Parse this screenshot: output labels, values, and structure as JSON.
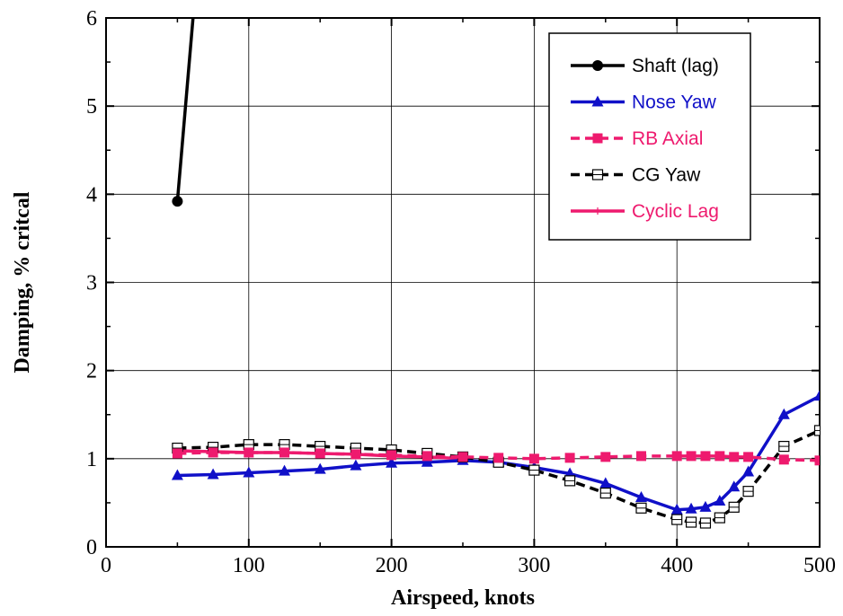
{
  "chart_data": {
    "type": "line",
    "title": "",
    "xlabel": "Airspeed, knots",
    "ylabel": "Damping, % critcal",
    "xlim": [
      0,
      500
    ],
    "ylim": [
      0,
      6
    ],
    "x_ticks": [
      0,
      100,
      200,
      300,
      400,
      500
    ],
    "y_ticks": [
      0,
      1,
      2,
      3,
      4,
      5,
      6
    ],
    "x_tick_labels": [
      "0",
      "100",
      "200",
      "300",
      "400",
      "500"
    ],
    "y_tick_labels": [
      "0",
      "1",
      "2",
      "3",
      "4",
      "5",
      "6"
    ],
    "grid": true,
    "legend_position": "top-right",
    "series": [
      {
        "name": "Shaft (lag)",
        "color": "#000000",
        "line_style": "solid",
        "marker": "filled-circle",
        "x": [
          50,
          62
        ],
        "y": [
          3.92,
          6.2
        ],
        "marker_x": [
          50
        ],
        "marker_y": [
          3.92
        ]
      },
      {
        "name": "Nose Yaw",
        "color": "#1010c8",
        "line_style": "solid",
        "marker": "filled-triangle",
        "x": [
          50,
          75,
          100,
          125,
          150,
          175,
          200,
          225,
          250,
          275,
          300,
          325,
          350,
          375,
          400,
          410,
          420,
          430,
          440,
          450,
          475,
          500
        ],
        "y": [
          0.81,
          0.82,
          0.84,
          0.86,
          0.88,
          0.92,
          0.95,
          0.96,
          0.98,
          0.96,
          0.9,
          0.83,
          0.72,
          0.56,
          0.42,
          0.43,
          0.45,
          0.52,
          0.68,
          0.85,
          1.5,
          1.71
        ]
      },
      {
        "name": "RB Axial",
        "color": "#ee1a6e",
        "line_style": "dashed",
        "marker": "filled-square",
        "x": [
          50,
          75,
          100,
          125,
          150,
          175,
          200,
          225,
          250,
          275,
          300,
          325,
          350,
          375,
          400,
          410,
          420,
          430,
          440,
          450,
          475,
          500
        ],
        "y": [
          1.06,
          1.07,
          1.07,
          1.07,
          1.06,
          1.05,
          1.04,
          1.03,
          1.02,
          1.01,
          1.0,
          1.01,
          1.02,
          1.03,
          1.03,
          1.03,
          1.03,
          1.03,
          1.02,
          1.02,
          0.99,
          0.98
        ]
      },
      {
        "name": "CG Yaw",
        "color": "#000000",
        "line_style": "dashed",
        "marker": "open-square",
        "x": [
          50,
          75,
          100,
          125,
          150,
          175,
          200,
          225,
          250,
          275,
          300,
          325,
          350,
          375,
          400,
          410,
          420,
          430,
          440,
          450,
          475,
          500
        ],
        "y": [
          1.12,
          1.13,
          1.16,
          1.16,
          1.14,
          1.12,
          1.1,
          1.06,
          1.02,
          0.96,
          0.87,
          0.75,
          0.61,
          0.44,
          0.31,
          0.28,
          0.27,
          0.33,
          0.45,
          0.63,
          1.14,
          1.32
        ]
      },
      {
        "name": "Cyclic Lag",
        "color": "#ee1a6e",
        "line_style": "solid",
        "marker": "plus",
        "x": [
          50,
          75,
          100,
          125,
          150,
          175,
          200,
          225,
          250
        ],
        "y": [
          1.09,
          1.08,
          1.07,
          1.07,
          1.06,
          1.05,
          1.03,
          1.02,
          1.0
        ]
      }
    ]
  }
}
